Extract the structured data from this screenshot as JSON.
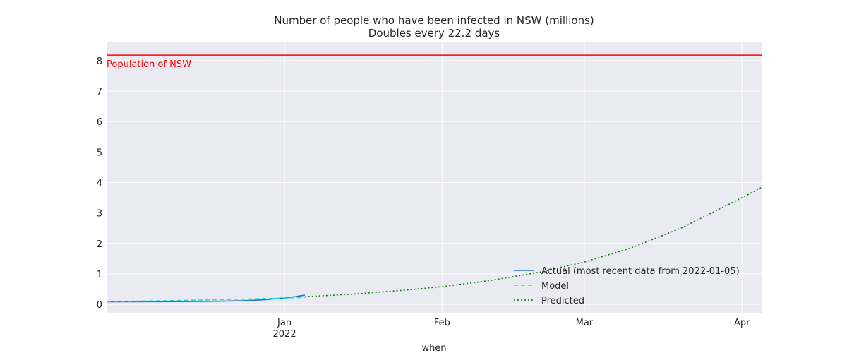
{
  "chart_data": {
    "type": "line",
    "title": "Number of people who have been infected in NSW (millions)",
    "subtitle": "Doubles every 22.2 days",
    "xlabel": "when",
    "ylabel": "",
    "x_range": [
      "2021-11-27",
      "2022-04-05"
    ],
    "ylim": [
      -0.3,
      8.6
    ],
    "x_ticks": [
      {
        "date": "2022-01-01",
        "label": "Jan",
        "sublabel": "2022"
      },
      {
        "date": "2022-02-01",
        "label": "Feb",
        "sublabel": ""
      },
      {
        "date": "2022-03-01",
        "label": "Mar",
        "sublabel": ""
      },
      {
        "date": "2022-04-01",
        "label": "Apr",
        "sublabel": ""
      }
    ],
    "y_ticks": [
      0,
      1,
      2,
      3,
      4,
      5,
      6,
      7,
      8
    ],
    "grid": true,
    "legend_position": "lower-right",
    "reference_line": {
      "label": "Population of NSW",
      "value": 8.18,
      "color": "#ff0000"
    },
    "series": [
      {
        "name": "Actual (most recent data from 2022-01-05)",
        "color": "#1f77b4",
        "style": "solid",
        "x": [
          "2021-11-27",
          "2021-12-05",
          "2021-12-12",
          "2021-12-19",
          "2021-12-24",
          "2021-12-28",
          "2022-01-01",
          "2022-01-03",
          "2022-01-05"
        ],
        "y": [
          0.085,
          0.087,
          0.09,
          0.1,
          0.12,
          0.15,
          0.21,
          0.25,
          0.3
        ]
      },
      {
        "name": "Model",
        "color": "#00e5ff",
        "style": "dashed",
        "x": [
          "2021-11-27",
          "2021-12-06",
          "2021-12-15",
          "2021-12-24",
          "2022-01-02",
          "2022-01-05"
        ],
        "y": [
          0.09,
          0.11,
          0.14,
          0.17,
          0.21,
          0.23
        ]
      },
      {
        "name": "Predicted",
        "color": "#008000",
        "style": "dotted",
        "x": [
          "2022-01-05",
          "2022-01-15",
          "2022-01-25",
          "2022-02-01",
          "2022-02-10",
          "2022-02-20",
          "2022-03-01",
          "2022-03-10",
          "2022-03-20",
          "2022-04-01",
          "2022-04-05"
        ],
        "y": [
          0.25,
          0.34,
          0.47,
          0.58,
          0.77,
          1.05,
          1.39,
          1.84,
          2.5,
          3.5,
          3.85
        ]
      }
    ]
  }
}
